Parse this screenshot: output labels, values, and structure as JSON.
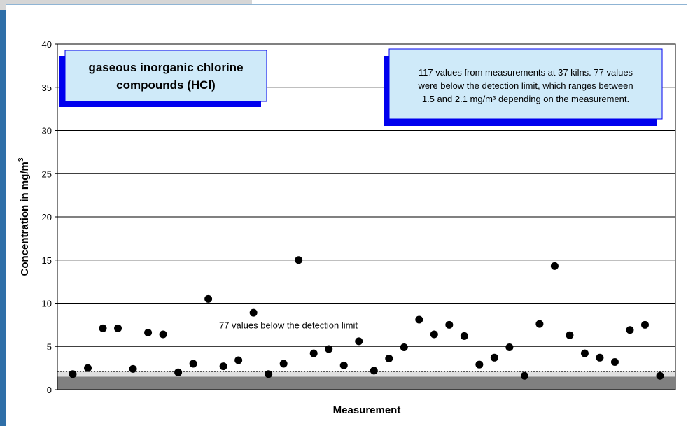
{
  "chart_data": {
    "type": "scatter",
    "ylabel_main": "Concentration in mg/m",
    "ylabel_sup": "3",
    "xlabel": "Measurement",
    "ylim": [
      0,
      40
    ],
    "yticks": [
      0,
      5,
      10,
      15,
      20,
      25,
      30,
      35,
      40
    ],
    "grid": true,
    "detection_limit_range": [
      1.5,
      2.1
    ],
    "detection_limit_label": "77 values below the detection limit",
    "title_box_lines": [
      "gaseous inorganic chlorine",
      "compounds (HCl)"
    ],
    "info_box_lines": [
      "117 values from measurements at 37 kilns. 77 values",
      "were below the detection limit, which ranges between",
      "1.5 and 2.1 mg/m³ depending on the measurement."
    ],
    "series": [
      {
        "x": [
          1,
          2,
          3,
          4,
          5,
          6,
          7,
          8,
          9,
          10,
          11,
          12,
          13,
          14,
          15,
          16,
          17,
          18,
          19,
          20,
          21,
          22,
          23,
          24,
          25,
          26,
          27,
          28,
          29,
          30,
          31,
          32,
          33,
          34,
          35,
          36,
          37,
          38,
          39,
          40
        ],
        "y": [
          1.8,
          2.5,
          7.1,
          7.1,
          2.4,
          6.6,
          6.4,
          2.0,
          3.0,
          10.5,
          2.7,
          3.4,
          8.9,
          1.8,
          3.0,
          15.0,
          4.2,
          4.7,
          2.8,
          5.6,
          2.2,
          3.6,
          4.9,
          8.1,
          6.4,
          7.5,
          6.2,
          2.9,
          3.7,
          4.9,
          1.6,
          7.6,
          14.3,
          6.3,
          4.2,
          3.7,
          3.2,
          6.9,
          7.5,
          1.6
        ]
      }
    ],
    "colors": {
      "marker": "#000000",
      "below_limit_fill": "#808080",
      "title_box_fill": "#cfeaf9",
      "title_box_shadow": "#0000ee",
      "gridline": "#000000"
    }
  }
}
